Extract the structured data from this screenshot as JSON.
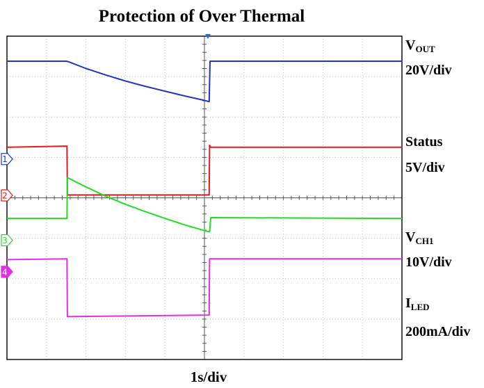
{
  "title": "Protection of Over Thermal",
  "xlabel": "1s/div",
  "labels": {
    "vout_main": "V",
    "vout_sub": "OUT",
    "vout_scale": "20V/div",
    "status_name": "Status",
    "status_scale": "5V/div",
    "vch1_main": "V",
    "vch1_sub": "CH1",
    "vch1_scale": "10V/div",
    "iled_main": "I",
    "iled_sub": "LED",
    "iled_scale": "200mA/div"
  },
  "chart_data": {
    "type": "line",
    "title": "Protection of Over Thermal",
    "xlabel": "1s/div",
    "ylabel": "",
    "grid": true,
    "grid_divisions": {
      "x": 10,
      "y": 8
    },
    "x_range_div": [
      0,
      10
    ],
    "y_range_div": [
      -4,
      4
    ],
    "trigger_marker_div": 5,
    "channels": [
      {
        "id": "1",
        "label": "V_OUT",
        "scale": "20V/div",
        "color": "#1f35c8",
        "ground_div": 0.96
      },
      {
        "id": "2",
        "label": "Status",
        "scale": "5V/div",
        "color": "#e11b1b",
        "ground_div": 0.06
      },
      {
        "id": "3",
        "label": "V_CH1",
        "scale": "10V/div",
        "color": "#22dd22",
        "ground_div": -1.05
      },
      {
        "id": "4",
        "label": "I_LED",
        "scale": "200mA/div",
        "color": "#e42ee4",
        "ground_div": -1.83
      }
    ],
    "series": [
      {
        "name": "V_OUT",
        "color": "#1f35c8",
        "x": [
          0,
          1.5,
          1.55,
          2.0,
          2.5,
          3.0,
          3.5,
          4.0,
          4.5,
          5.0,
          5.12,
          5.14,
          10
        ],
        "y": [
          3.38,
          3.38,
          3.37,
          3.2,
          3.04,
          2.89,
          2.76,
          2.64,
          2.52,
          2.41,
          2.38,
          3.38,
          3.38
        ]
      },
      {
        "name": "Status",
        "color": "#e11b1b",
        "x": [
          0,
          1.52,
          1.53,
          5.12,
          5.13,
          5.16,
          10
        ],
        "y": [
          1.25,
          1.28,
          0.07,
          0.07,
          1.3,
          1.25,
          1.25
        ]
      },
      {
        "name": "V_CH1",
        "color": "#22dd22",
        "x": [
          0,
          1.52,
          1.53,
          2.0,
          2.5,
          3.0,
          3.5,
          4.0,
          4.5,
          5.0,
          5.12,
          5.13,
          5.16,
          10
        ],
        "y": [
          -0.51,
          -0.51,
          0.5,
          0.27,
          0.04,
          -0.16,
          -0.34,
          -0.51,
          -0.67,
          -0.81,
          -0.84,
          -0.84,
          -0.49,
          -0.51
        ]
      },
      {
        "name": "I_LED",
        "color": "#e42ee4",
        "x": [
          0,
          1.52,
          1.53,
          5.12,
          5.13,
          10
        ],
        "y": [
          -1.53,
          -1.51,
          -2.94,
          -2.9,
          -1.51,
          -1.51
        ]
      }
    ]
  }
}
